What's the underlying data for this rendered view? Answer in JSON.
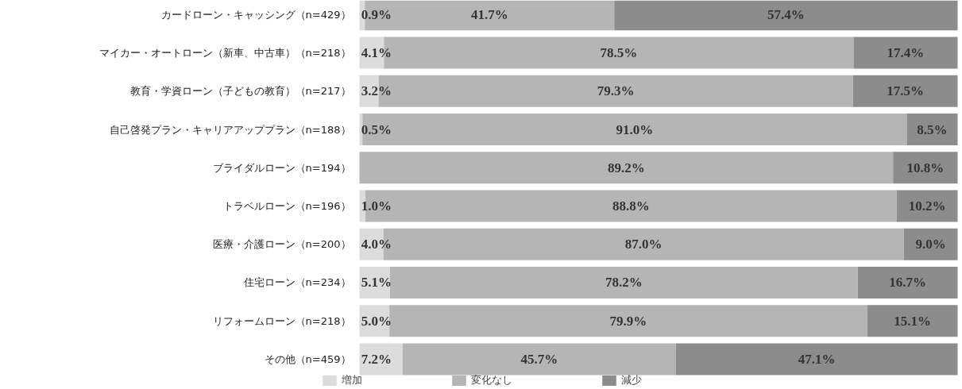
{
  "chart_data": {
    "type": "bar",
    "orientation": "horizontal",
    "stacked": true,
    "tick_labels": "y",
    "legend": "bottom",
    "xlim": [
      0,
      100
    ],
    "categories": [
      "カードローン・キャッシング（n=429）",
      "マイカー・オートローン（新車、中古車）（n=218）",
      "教育・学資ローン（子どもの教育）（n=217）",
      "自己啓発プラン・キャリアアッププラン（n=188）",
      "ブライダルローン（n=194）",
      "トラベルローン（n=196）",
      "医療・介護ローン（n=200）",
      "住宅ローン（n=234）",
      "リフォームローン（n=218）",
      "その他（n=459）"
    ],
    "series": [
      {
        "name": "増加",
        "color": "#dcdcdd",
        "values": [
          0.9,
          4.1,
          3.2,
          0.5,
          0,
          1.0,
          4.0,
          5.1,
          5.0,
          7.2
        ],
        "value_labels": [
          "0.9%",
          "4.1%",
          "3.2%",
          "0.5%",
          null,
          "1.0%",
          "4.0%",
          "5.1%",
          "5.0%",
          "7.2%"
        ]
      },
      {
        "name": "変化なし",
        "color": "#b5b5b6",
        "values": [
          41.7,
          78.5,
          79.3,
          91.0,
          89.2,
          88.8,
          87.0,
          78.2,
          79.9,
          45.7
        ],
        "value_labels": [
          "41.7%",
          "78.5%",
          "79.3%",
          "91.0%",
          "89.2%",
          "88.8%",
          "87.0%",
          "78.2%",
          "79.9%",
          "45.7%"
        ]
      },
      {
        "name": "減少",
        "color": "#8c8c8d",
        "values": [
          57.4,
          17.4,
          17.5,
          8.5,
          10.8,
          10.2,
          9.0,
          16.7,
          15.1,
          47.1
        ],
        "value_labels": [
          "57.4%",
          "17.4%",
          "17.5%",
          "8.5%",
          "10.8%",
          "10.2%",
          "9.0%",
          "16.7%",
          "15.1%",
          "47.1%"
        ]
      }
    ]
  }
}
